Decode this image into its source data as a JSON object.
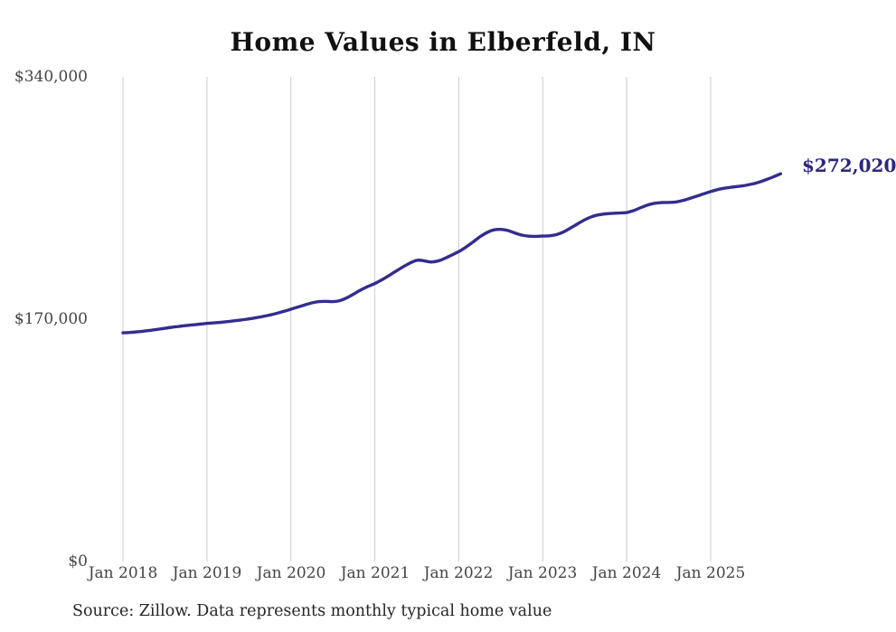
{
  "title": "Home Values in Elberfeld, IN",
  "source_note": "Source: Zillow. Data represents monthly typical home value",
  "colors": {
    "line": "#332d8e",
    "end_label": "#2b2680",
    "grid": "#cccccc",
    "title": "#111111",
    "axis_text": "#444444",
    "source_text": "#262626",
    "background": "#ffffff"
  },
  "chart_data": {
    "type": "line",
    "title": "Home Values in Elberfeld, IN",
    "xlabel": "",
    "ylabel": "",
    "ylim": [
      0,
      340000
    ],
    "y_tick_labels": [
      "$0",
      "$170,000",
      "$340,000"
    ],
    "y_tick_values": [
      0,
      170000,
      340000
    ],
    "x_tick_labels": [
      "Jan 2018",
      "Jan 2019",
      "Jan 2020",
      "Jan 2021",
      "Jan 2022",
      "Jan 2023",
      "Jan 2024",
      "Jan 2025"
    ],
    "grid": "vertical-gridlines-only",
    "legend": "none",
    "end_annotation": {
      "text": "$272,020",
      "value": 272020
    },
    "series": [
      {
        "name": "Monthly typical home value",
        "x_start": "2018-01",
        "x_interval": "monthly",
        "points": 95,
        "x_end": "2025-11",
        "values": [
          160400,
          160700,
          161100,
          161600,
          162200,
          162900,
          163600,
          164300,
          164900,
          165500,
          166000,
          166500,
          167000,
          167400,
          167800,
          168300,
          168900,
          169500,
          170200,
          171000,
          171900,
          172900,
          174100,
          175500,
          177000,
          178500,
          180000,
          181400,
          182300,
          182500,
          182300,
          183000,
          185000,
          187700,
          190500,
          192900,
          195000,
          197600,
          200500,
          203600,
          206600,
          209300,
          211300,
          211000,
          210100,
          210800,
          212700,
          215000,
          217400,
          220500,
          224000,
          227700,
          230700,
          232600,
          233000,
          232200,
          230500,
          229000,
          228200,
          228100,
          228300,
          228500,
          229400,
          231300,
          234000,
          236900,
          239700,
          241900,
          243200,
          243900,
          244300,
          244500,
          244800,
          246200,
          248200,
          250100,
          251300,
          251800,
          251900,
          252200,
          253200,
          254700,
          256300,
          257900,
          259500,
          260900,
          261900,
          262600,
          263200,
          263900,
          264900,
          266300,
          268000,
          269900,
          272020
        ]
      }
    ]
  }
}
